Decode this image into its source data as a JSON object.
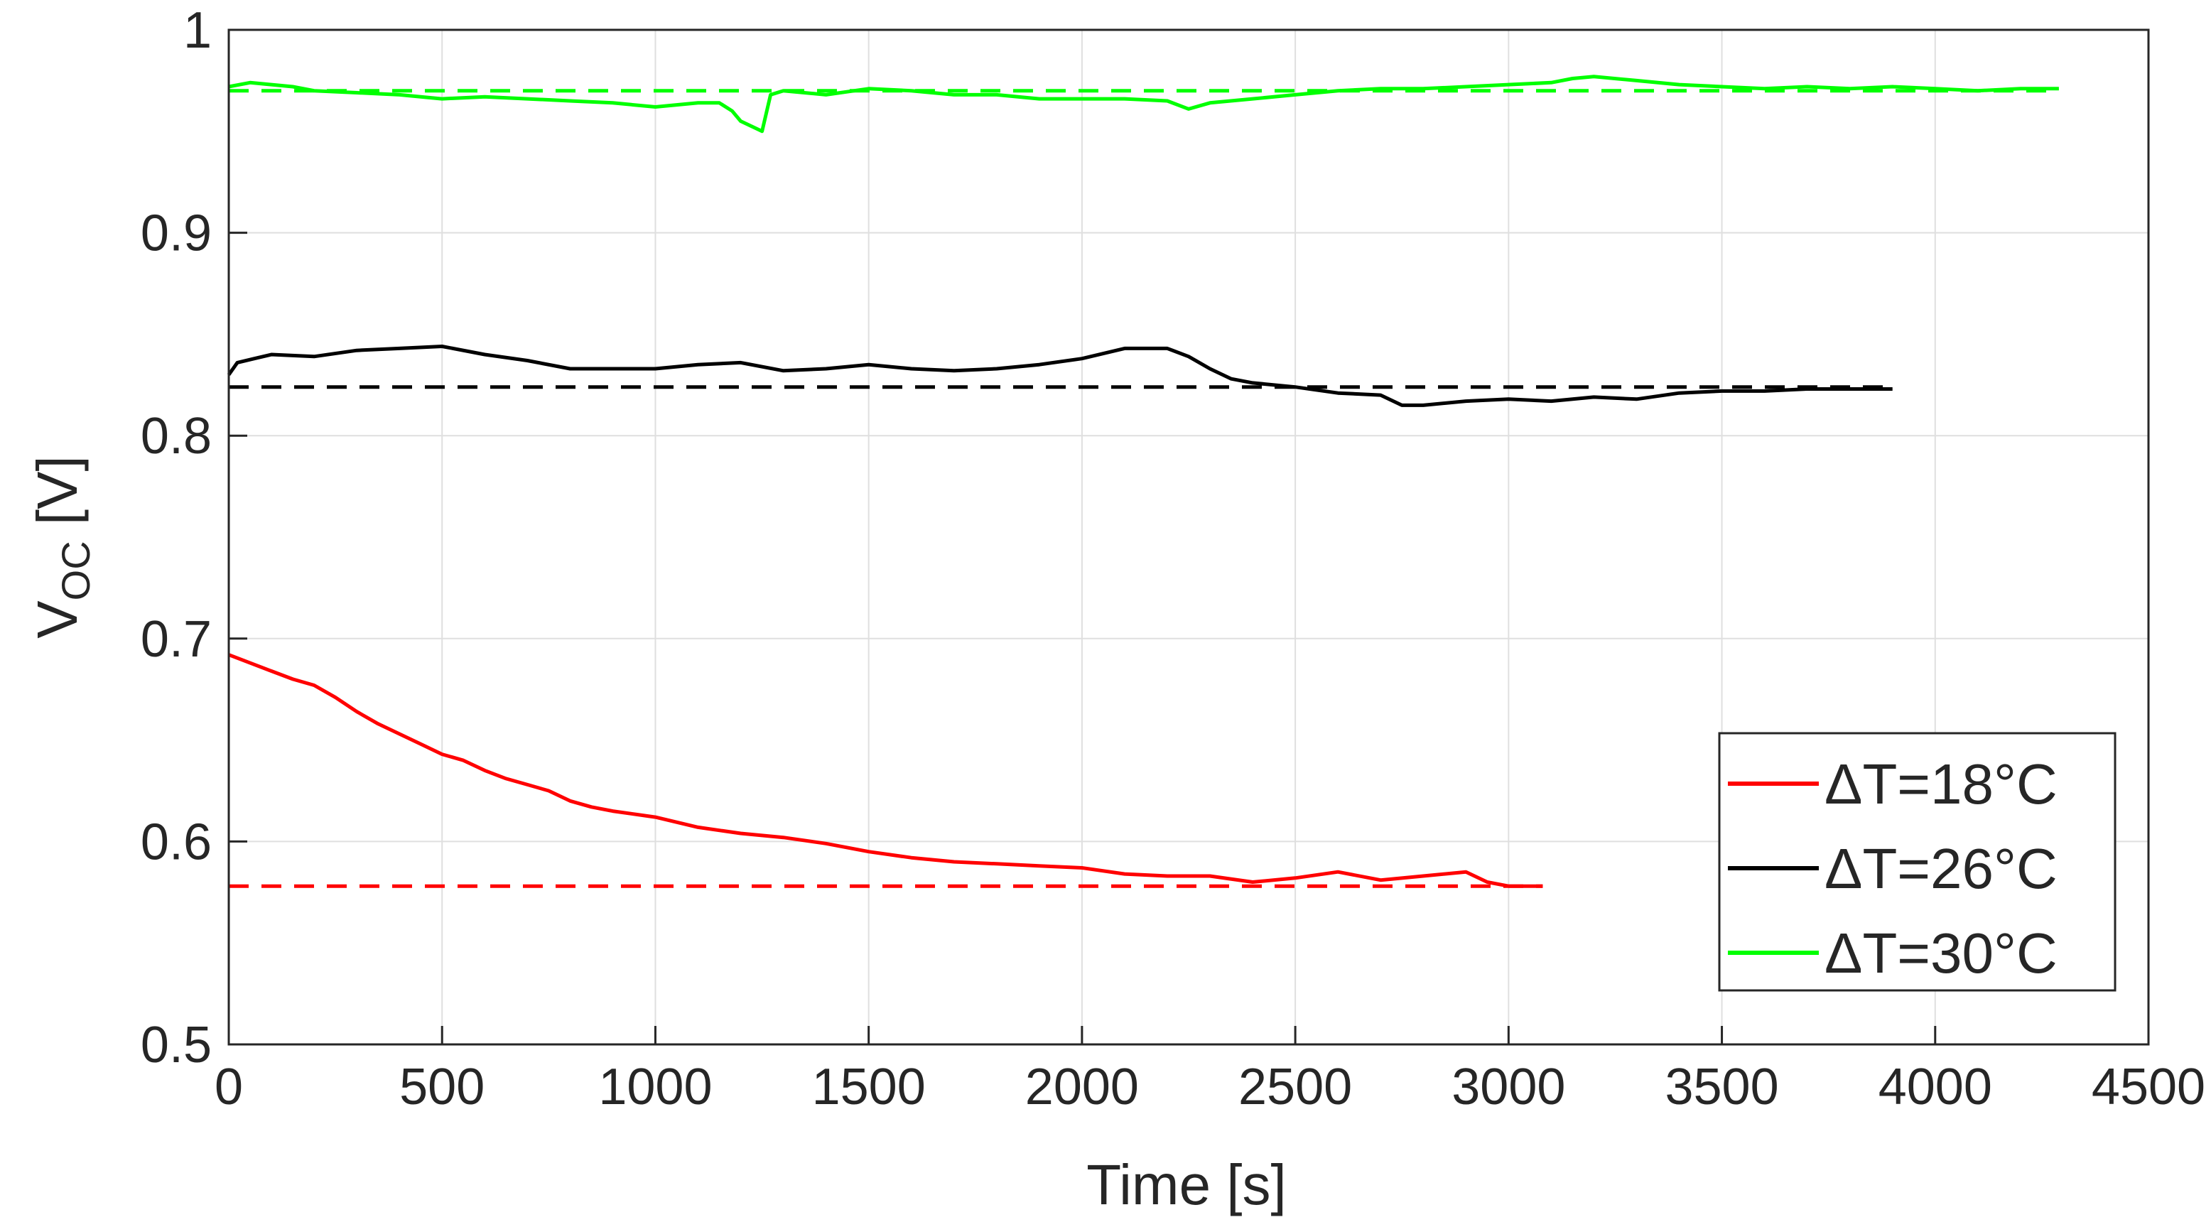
{
  "chart_data": {
    "type": "line",
    "title": "",
    "xlabel": "Time [s]",
    "ylabel": "V",
    "ylabel_subscript": "OC",
    "ylabel_unit": " [V]",
    "xlim": [
      0,
      4500
    ],
    "ylim": [
      0.5,
      1.0
    ],
    "xticks": [
      0,
      500,
      1000,
      1500,
      2000,
      2500,
      3000,
      3500,
      4000,
      4500
    ],
    "xtick_labels": [
      "0",
      "500",
      "1000",
      "1500",
      "2000",
      "2500",
      "3000",
      "3500",
      "4000",
      "4500"
    ],
    "yticks": [
      0.5,
      0.6,
      0.7,
      0.8,
      0.9,
      1.0
    ],
    "ytick_labels": [
      "0.5",
      "0.6",
      "0.7",
      "0.8",
      "0.9",
      "1"
    ],
    "grid": true,
    "legend_position": "bottom-right",
    "series": [
      {
        "name": "ΔT=18°C",
        "color": "#ff0000",
        "style": "solid",
        "points": [
          [
            0,
            0.692
          ],
          [
            50,
            0.688
          ],
          [
            100,
            0.684
          ],
          [
            150,
            0.68
          ],
          [
            200,
            0.677
          ],
          [
            250,
            0.671
          ],
          [
            300,
            0.664
          ],
          [
            350,
            0.658
          ],
          [
            400,
            0.653
          ],
          [
            450,
            0.648
          ],
          [
            500,
            0.643
          ],
          [
            550,
            0.64
          ],
          [
            600,
            0.635
          ],
          [
            650,
            0.631
          ],
          [
            700,
            0.628
          ],
          [
            750,
            0.625
          ],
          [
            800,
            0.62
          ],
          [
            850,
            0.617
          ],
          [
            900,
            0.615
          ],
          [
            1000,
            0.612
          ],
          [
            1100,
            0.607
          ],
          [
            1200,
            0.604
          ],
          [
            1300,
            0.602
          ],
          [
            1400,
            0.599
          ],
          [
            1500,
            0.595
          ],
          [
            1600,
            0.592
          ],
          [
            1700,
            0.59
          ],
          [
            1800,
            0.589
          ],
          [
            1900,
            0.588
          ],
          [
            2000,
            0.587
          ],
          [
            2100,
            0.584
          ],
          [
            2200,
            0.583
          ],
          [
            2300,
            0.583
          ],
          [
            2400,
            0.58
          ],
          [
            2500,
            0.582
          ],
          [
            2600,
            0.585
          ],
          [
            2700,
            0.581
          ],
          [
            2800,
            0.583
          ],
          [
            2900,
            0.585
          ],
          [
            2950,
            0.58
          ],
          [
            3000,
            0.578
          ],
          [
            3080,
            0.578
          ]
        ]
      },
      {
        "name": "ΔT=26°C",
        "color": "#000000",
        "style": "solid",
        "points": [
          [
            0,
            0.83
          ],
          [
            20,
            0.836
          ],
          [
            60,
            0.838
          ],
          [
            100,
            0.84
          ],
          [
            200,
            0.839
          ],
          [
            300,
            0.842
          ],
          [
            400,
            0.843
          ],
          [
            500,
            0.844
          ],
          [
            600,
            0.84
          ],
          [
            700,
            0.837
          ],
          [
            800,
            0.833
          ],
          [
            900,
            0.833
          ],
          [
            1000,
            0.833
          ],
          [
            1100,
            0.835
          ],
          [
            1200,
            0.836
          ],
          [
            1300,
            0.832
          ],
          [
            1400,
            0.833
          ],
          [
            1500,
            0.835
          ],
          [
            1600,
            0.833
          ],
          [
            1700,
            0.832
          ],
          [
            1800,
            0.833
          ],
          [
            1900,
            0.835
          ],
          [
            2000,
            0.838
          ],
          [
            2100,
            0.843
          ],
          [
            2200,
            0.843
          ],
          [
            2250,
            0.839
          ],
          [
            2300,
            0.833
          ],
          [
            2350,
            0.828
          ],
          [
            2400,
            0.826
          ],
          [
            2500,
            0.824
          ],
          [
            2600,
            0.821
          ],
          [
            2700,
            0.82
          ],
          [
            2750,
            0.815
          ],
          [
            2800,
            0.815
          ],
          [
            2900,
            0.817
          ],
          [
            3000,
            0.818
          ],
          [
            3100,
            0.817
          ],
          [
            3200,
            0.819
          ],
          [
            3300,
            0.818
          ],
          [
            3400,
            0.821
          ],
          [
            3500,
            0.822
          ],
          [
            3600,
            0.822
          ],
          [
            3700,
            0.823
          ],
          [
            3800,
            0.823
          ],
          [
            3900,
            0.823
          ]
        ]
      },
      {
        "name": "ΔT=30°C",
        "color": "#00ff00",
        "style": "solid",
        "points": [
          [
            0,
            0.972
          ],
          [
            50,
            0.974
          ],
          [
            100,
            0.973
          ],
          [
            150,
            0.972
          ],
          [
            200,
            0.97
          ],
          [
            300,
            0.969
          ],
          [
            400,
            0.968
          ],
          [
            500,
            0.966
          ],
          [
            600,
            0.967
          ],
          [
            700,
            0.966
          ],
          [
            800,
            0.965
          ],
          [
            900,
            0.964
          ],
          [
            1000,
            0.962
          ],
          [
            1100,
            0.964
          ],
          [
            1150,
            0.964
          ],
          [
            1180,
            0.96
          ],
          [
            1200,
            0.955
          ],
          [
            1250,
            0.95
          ],
          [
            1270,
            0.968
          ],
          [
            1300,
            0.97
          ],
          [
            1400,
            0.968
          ],
          [
            1500,
            0.971
          ],
          [
            1600,
            0.97
          ],
          [
            1700,
            0.968
          ],
          [
            1800,
            0.968
          ],
          [
            1900,
            0.966
          ],
          [
            2000,
            0.966
          ],
          [
            2100,
            0.966
          ],
          [
            2200,
            0.965
          ],
          [
            2250,
            0.961
          ],
          [
            2300,
            0.964
          ],
          [
            2400,
            0.966
          ],
          [
            2500,
            0.968
          ],
          [
            2600,
            0.97
          ],
          [
            2700,
            0.971
          ],
          [
            2800,
            0.971
          ],
          [
            2900,
            0.972
          ],
          [
            3000,
            0.973
          ],
          [
            3100,
            0.974
          ],
          [
            3150,
            0.976
          ],
          [
            3200,
            0.977
          ],
          [
            3300,
            0.975
          ],
          [
            3400,
            0.973
          ],
          [
            3500,
            0.972
          ],
          [
            3600,
            0.971
          ],
          [
            3700,
            0.972
          ],
          [
            3800,
            0.971
          ],
          [
            3900,
            0.972
          ],
          [
            4000,
            0.971
          ],
          [
            4100,
            0.97
          ],
          [
            4200,
            0.971
          ],
          [
            4290,
            0.971
          ]
        ]
      },
      {
        "name": "",
        "color": "#ff0000",
        "style": "dashed",
        "points": [
          [
            0,
            0.578
          ],
          [
            3080,
            0.578
          ]
        ]
      },
      {
        "name": "",
        "color": "#000000",
        "style": "dashed",
        "points": [
          [
            0,
            0.824
          ],
          [
            3900,
            0.824
          ]
        ]
      },
      {
        "name": "",
        "color": "#00ff00",
        "style": "dashed",
        "points": [
          [
            0,
            0.97
          ],
          [
            4290,
            0.97
          ]
        ]
      }
    ]
  }
}
